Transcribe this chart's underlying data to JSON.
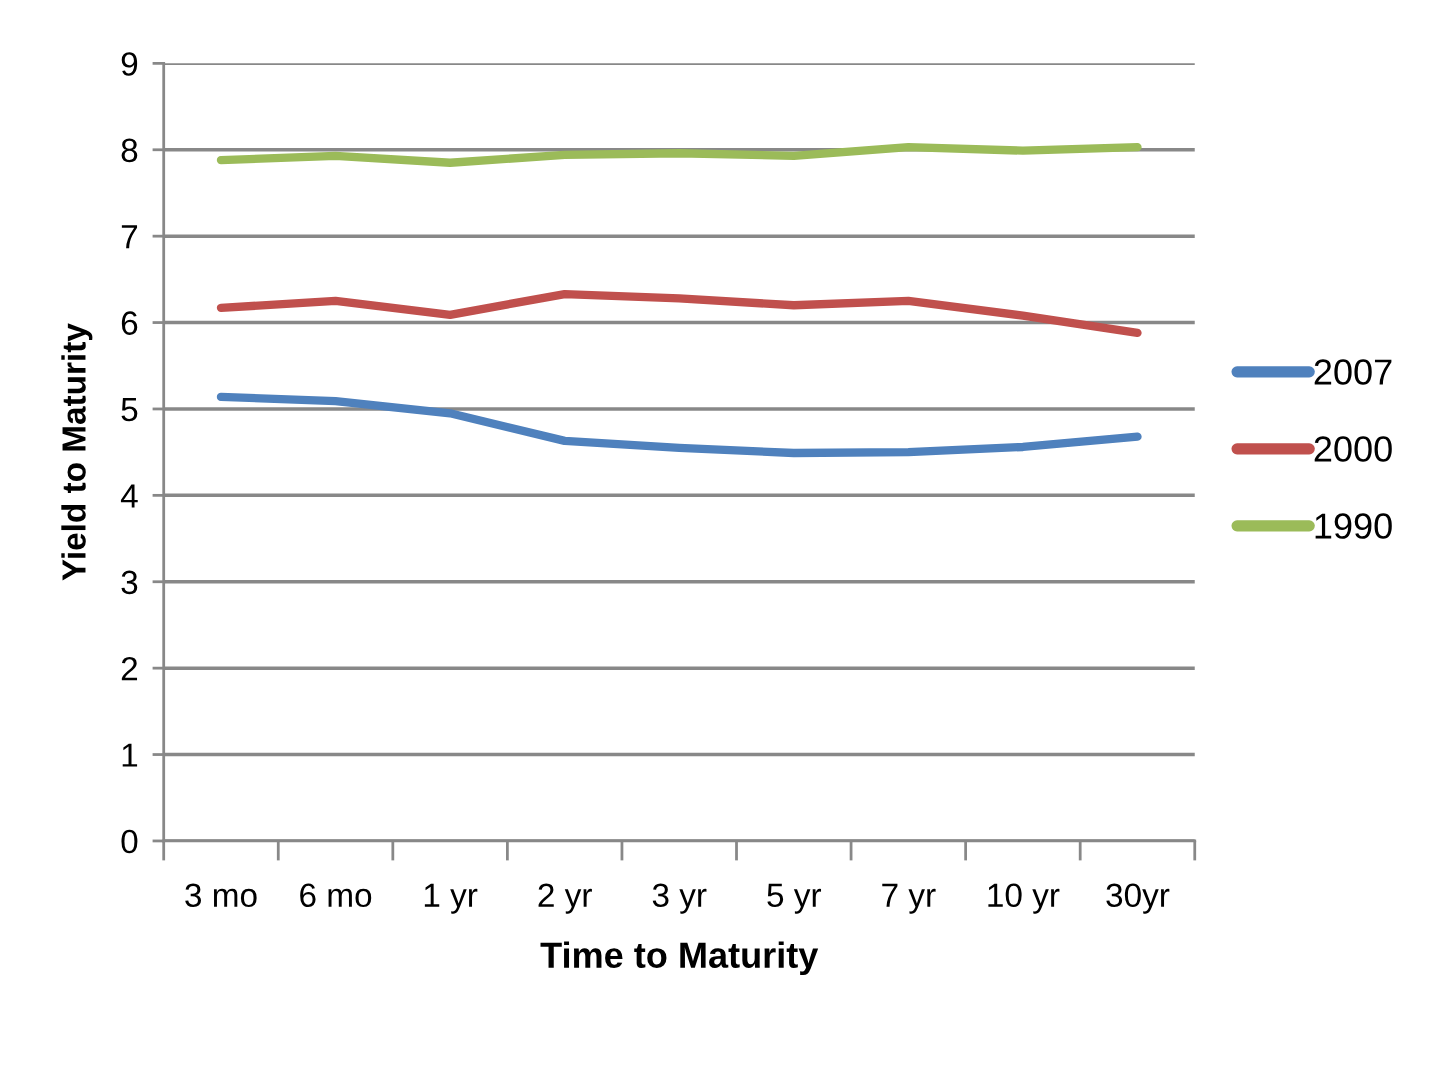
{
  "chart_data": {
    "type": "line",
    "xlabel": "Time to Maturity",
    "ylabel": "Yield to Maturity",
    "categories": [
      "3 mo",
      "6 mo",
      "1 yr",
      "2 yr",
      "3 yr",
      "5 yr",
      "7 yr",
      "10 yr",
      "30yr"
    ],
    "series": [
      {
        "name": "2007",
        "color": "#4f81bd",
        "values": [
          5.14,
          5.09,
          4.95,
          4.63,
          4.55,
          4.49,
          4.5,
          4.56,
          4.68
        ]
      },
      {
        "name": "2000",
        "color": "#c0504d",
        "values": [
          6.17,
          6.25,
          6.09,
          6.33,
          6.28,
          6.2,
          6.25,
          6.08,
          5.88
        ]
      },
      {
        "name": "1990",
        "color": "#9bbb59",
        "values": [
          7.88,
          7.93,
          7.85,
          7.94,
          7.96,
          7.93,
          8.03,
          7.99,
          8.03
        ]
      }
    ],
    "ylim": [
      0,
      9
    ],
    "yticks": [
      0,
      1,
      2,
      3,
      4,
      5,
      6,
      7,
      8,
      9
    ],
    "grid": "y",
    "legend": "right",
    "marker": "none",
    "line_style": "solid"
  }
}
